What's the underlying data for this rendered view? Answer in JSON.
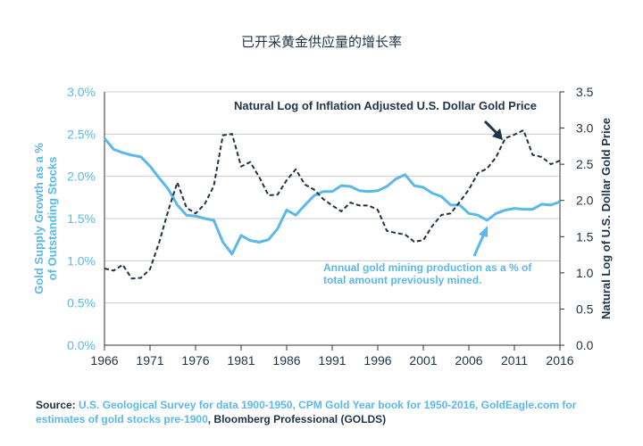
{
  "title": "已开采黄金供应量的增长率",
  "source": {
    "label": "Source:",
    "highlight": "U.S. Geological Survey for data 1900-1950, CPM Gold Year book for 1950-2016, GoldEagle.com for estimates of gold stocks pre-1900",
    "trailing": ", Bloomberg Professional (GOLDS)"
  },
  "colors": {
    "supply": "#5bb8e8",
    "price": "#1f3347",
    "grid": "#c9ccd0"
  },
  "chart_data": {
    "type": "line",
    "xlabel": "",
    "xlim": [
      1966,
      2016
    ],
    "x_ticks": [
      "1966",
      "1971",
      "1976",
      "1981",
      "1986",
      "1991",
      "1996",
      "2001",
      "2006",
      "2011",
      "2016"
    ],
    "y_left": {
      "label": "Gold Supply Growth as a % of Outstanding Stocks",
      "ylim": [
        0,
        3.0
      ],
      "ticks": [
        "0.0%",
        "0.5%",
        "1.0%",
        "1.5%",
        "2.0%",
        "2.5%",
        "3.0%"
      ]
    },
    "y_right": {
      "label": "Natural Log of U.S. Dollar Gold Price",
      "ylim": [
        0,
        3.5
      ],
      "ticks": [
        "0.0",
        "0.5",
        "1.0",
        "1.5",
        "2.0",
        "2.5",
        "3.0",
        "3.5"
      ]
    },
    "grid": true,
    "series": [
      {
        "name": "Annual gold mining production as a % of total amount previously mined.",
        "axis": "left",
        "style": "solid",
        "x": [
          1966,
          1967,
          1968,
          1969,
          1970,
          1971,
          1972,
          1973,
          1974,
          1975,
          1976,
          1977,
          1978,
          1979,
          1980,
          1981,
          1982,
          1983,
          1984,
          1985,
          1986,
          1987,
          1988,
          1989,
          1990,
          1991,
          1992,
          1993,
          1994,
          1995,
          1996,
          1997,
          1998,
          1999,
          2000,
          2001,
          2002,
          2003,
          2004,
          2005,
          2006,
          2007,
          2008,
          2009,
          2010,
          2011,
          2012,
          2013,
          2014,
          2015,
          2016
        ],
        "values": [
          2.45,
          2.32,
          2.28,
          2.25,
          2.23,
          2.12,
          1.98,
          1.85,
          1.66,
          1.54,
          1.53,
          1.5,
          1.48,
          1.22,
          1.08,
          1.3,
          1.24,
          1.22,
          1.25,
          1.38,
          1.6,
          1.54,
          1.66,
          1.77,
          1.82,
          1.82,
          1.89,
          1.88,
          1.83,
          1.82,
          1.83,
          1.88,
          1.97,
          2.02,
          1.89,
          1.87,
          1.8,
          1.76,
          1.66,
          1.66,
          1.56,
          1.54,
          1.48,
          1.56,
          1.6,
          1.62,
          1.61,
          1.61,
          1.67,
          1.66,
          1.7
        ]
      },
      {
        "name": "Natural Log of Inflation Adjusted U.S. Dollar Gold Price",
        "axis": "right",
        "style": "dashed",
        "x": [
          1966,
          1967,
          1968,
          1969,
          1970,
          1971,
          1972,
          1973,
          1974,
          1975,
          1976,
          1977,
          1978,
          1979,
          1980,
          1981,
          1982,
          1983,
          1984,
          1985,
          1986,
          1987,
          1988,
          1989,
          1990,
          1991,
          1992,
          1993,
          1994,
          1995,
          1996,
          1997,
          1998,
          1999,
          2000,
          2001,
          2002,
          2003,
          2004,
          2005,
          2006,
          2007,
          2008,
          2009,
          2010,
          2011,
          2012,
          2013,
          2014,
          2015,
          2016
        ],
        "values": [
          1.06,
          1.03,
          1.11,
          0.92,
          0.93,
          1.05,
          1.42,
          1.86,
          2.25,
          1.9,
          1.82,
          1.95,
          2.2,
          2.9,
          2.92,
          2.47,
          2.53,
          2.32,
          2.07,
          2.08,
          2.28,
          2.43,
          2.22,
          2.15,
          2.02,
          1.93,
          1.85,
          1.97,
          1.93,
          1.93,
          1.87,
          1.58,
          1.55,
          1.53,
          1.43,
          1.45,
          1.65,
          1.8,
          1.82,
          1.98,
          2.15,
          2.38,
          2.44,
          2.6,
          2.86,
          2.91,
          2.97,
          2.63,
          2.6,
          2.5,
          2.55
        ]
      }
    ],
    "annotations": [
      {
        "text": "Natural Log of Inflation Adjusted U.S. Dollar Gold Price",
        "series": 1,
        "color": "#1f3347"
      },
      {
        "text_lines": [
          "Annual gold mining production as a % of",
          "total amount previously mined."
        ],
        "series": 0,
        "color": "#5bb8e8"
      }
    ]
  }
}
